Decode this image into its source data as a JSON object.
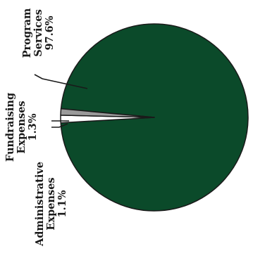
{
  "chart_data": {
    "type": "pie",
    "title": "",
    "slices": [
      {
        "label_lines": [
          "Program",
          "Services",
          "97.6%"
        ],
        "value": 97.6,
        "color": "#0b4a2a"
      },
      {
        "label_lines": [
          "Fundraising",
          "Expenses",
          "1.3%"
        ],
        "value": 1.3,
        "color": "#ffffff"
      },
      {
        "label_lines": [
          "Administrative",
          "Expenses",
          "1.1%"
        ],
        "value": 1.1,
        "color": "#9a9a9a"
      }
    ],
    "legend": "none"
  }
}
